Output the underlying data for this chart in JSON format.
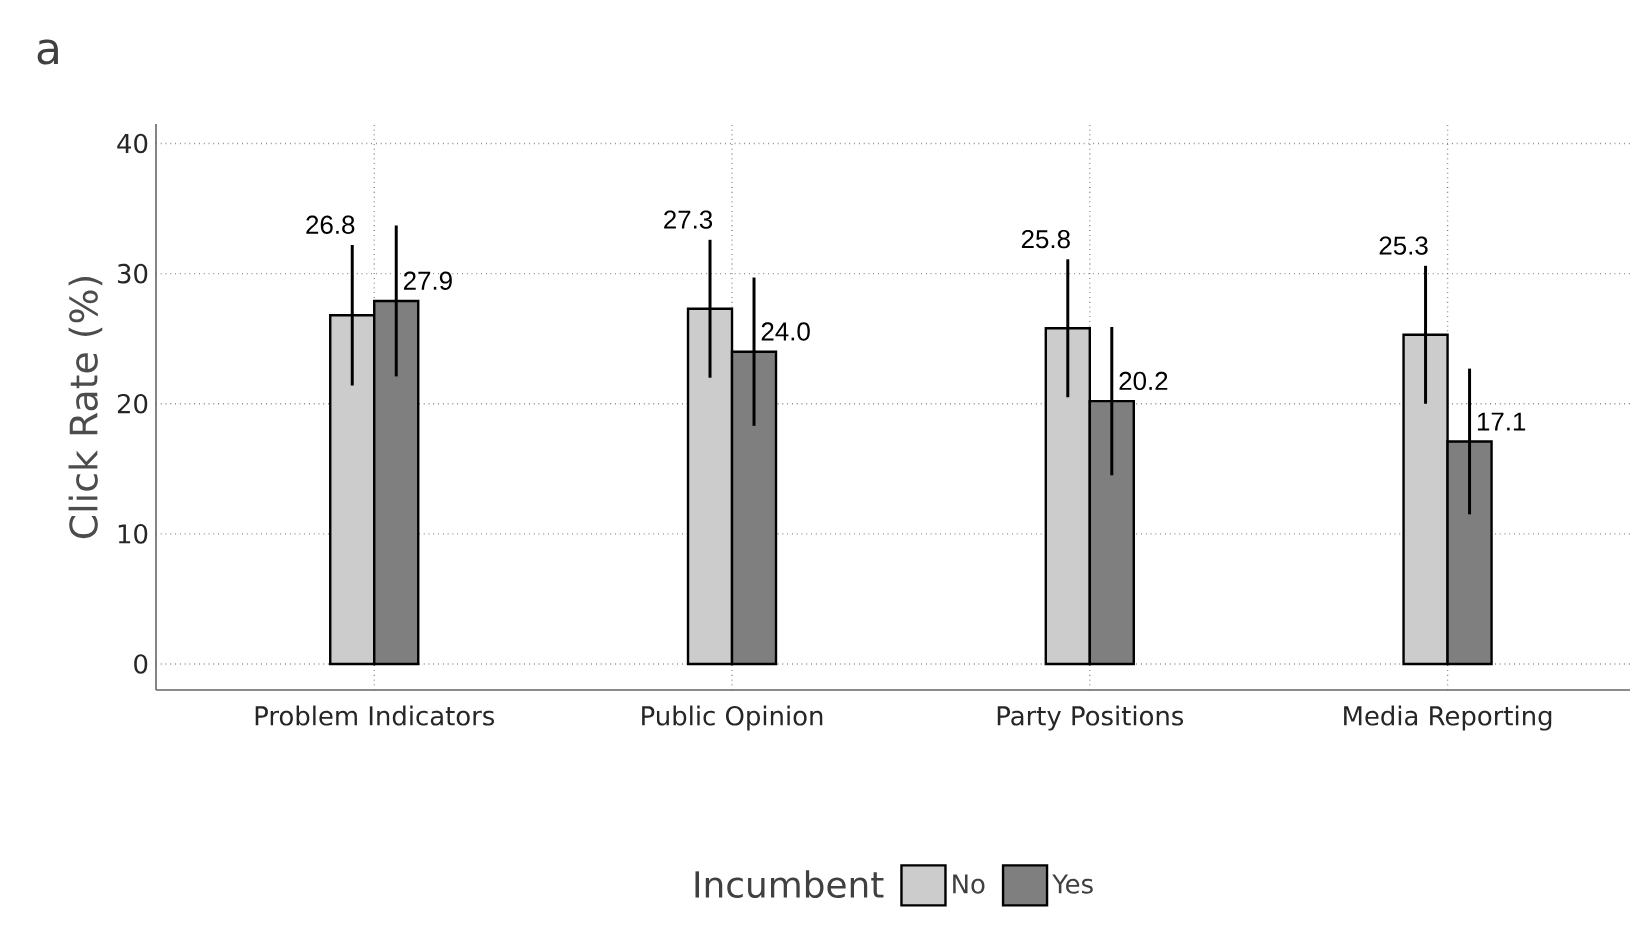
{
  "chart_data": {
    "type": "bar",
    "title": "a",
    "ylabel": "Click Rate (%)",
    "legend_title": "Incumbent",
    "categories": [
      "Problem Indicators",
      "Public Opinion",
      "Party Positions",
      "Media Reporting"
    ],
    "series": [
      {
        "name": "No",
        "color": "#cccccc",
        "values": [
          26.8,
          27.3,
          25.8,
          25.3
        ],
        "value_labels": [
          "26.8",
          "27.3",
          "25.8",
          "25.3"
        ],
        "errors": [
          5.4,
          5.3,
          5.3,
          5.3
        ]
      },
      {
        "name": "Yes",
        "color": "#7f7f7f",
        "values": [
          27.9,
          24.0,
          20.2,
          17.1
        ],
        "value_labels": [
          "27.9",
          "24.0",
          "20.2",
          "17.1"
        ],
        "errors": [
          5.8,
          5.7,
          5.7,
          5.6
        ]
      }
    ],
    "ylim": [
      -2,
      41.5
    ],
    "yticks": [
      0,
      10,
      20,
      30,
      40
    ],
    "grid": true,
    "legend": "bottom"
  }
}
